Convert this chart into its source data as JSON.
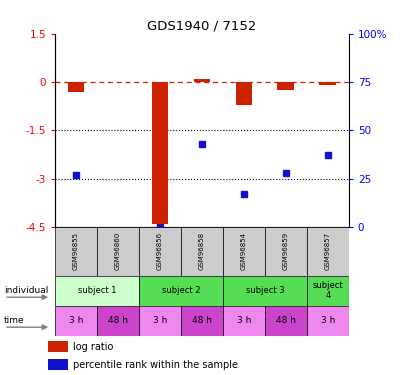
{
  "title": "GDS1940 / 7152",
  "samples": [
    "GSM96855",
    "GSM96860",
    "GSM96856",
    "GSM96858",
    "GSM96854",
    "GSM96859",
    "GSM96857"
  ],
  "log_ratio": [
    -0.3,
    0.0,
    -4.4,
    0.1,
    -0.7,
    -0.25,
    -0.1
  ],
  "percentile_rank": [
    27,
    null,
    0,
    43,
    17,
    28,
    37
  ],
  "ylim_left": [
    -4.5,
    1.5
  ],
  "left_ticks": [
    1.5,
    0,
    -1.5,
    -3.0,
    -4.5
  ],
  "left_tick_labels": [
    "1.5",
    "0",
    "-1.5",
    "-3",
    "-4.5"
  ],
  "right_ticks": [
    100,
    75,
    50,
    25,
    0
  ],
  "right_tick_labels": [
    "100%",
    "75",
    "50",
    "25",
    "0"
  ],
  "hlines": [
    -1.5,
    -3.0
  ],
  "bar_color": "#cc2200",
  "dot_color": "#1111cc",
  "subjects": [
    {
      "start": 0,
      "end": 1,
      "label": "subject 1",
      "color": "#ccffcc"
    },
    {
      "start": 2,
      "end": 3,
      "label": "subject 2",
      "color": "#55dd55"
    },
    {
      "start": 4,
      "end": 5,
      "label": "subject 3",
      "color": "#55dd55"
    },
    {
      "start": 6,
      "end": 6,
      "label": "subject\n4",
      "color": "#55dd55"
    }
  ],
  "time_labels": [
    "3 h",
    "48 h",
    "3 h",
    "48 h",
    "3 h",
    "48 h",
    "3 h"
  ],
  "time_colors": [
    "#ee88ee",
    "#cc44cc",
    "#ee88ee",
    "#cc44cc",
    "#ee88ee",
    "#cc44cc",
    "#ee88ee"
  ],
  "sample_bg": "#cccccc",
  "bar_width": 0.4
}
